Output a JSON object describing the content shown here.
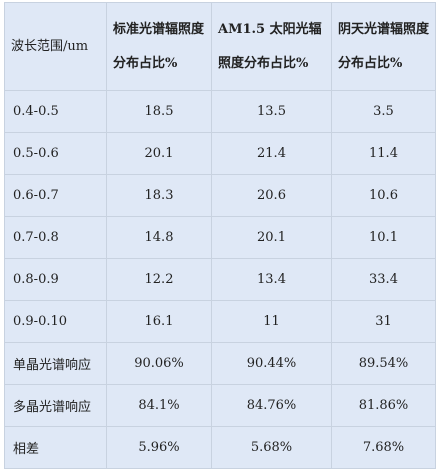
{
  "table": {
    "headers": [
      "波长范围/um",
      "标准光谱辐照度分布占比%",
      "AM1.5 太阳光辐照度分布占比%",
      "阴天光谱辐照度分布占比%"
    ],
    "rows": [
      {
        "label": "0.4-0.5",
        "values": [
          "18.5",
          "13.5",
          "3.5"
        ]
      },
      {
        "label": "0.5-0.6",
        "values": [
          "20.1",
          "21.4",
          "11.4"
        ]
      },
      {
        "label": "0.6-0.7",
        "values": [
          "18.3",
          "20.6",
          "10.6"
        ]
      },
      {
        "label": "0.7-0.8",
        "values": [
          "14.8",
          "20.1",
          "10.1"
        ]
      },
      {
        "label": "0.8-0.9",
        "values": [
          "12.2",
          "13.4",
          "33.4"
        ]
      },
      {
        "label": "0.9-0.10",
        "values": [
          "16.1",
          "11",
          "31"
        ]
      },
      {
        "label": "单晶光谱响应",
        "values": [
          "90.06%",
          "90.44%",
          "89.54%"
        ]
      },
      {
        "label": "多晶光谱响应",
        "values": [
          "84.1%",
          "84.76%",
          "81.86%"
        ]
      },
      {
        "label": "相差",
        "values": [
          "5.96%",
          "5.68%",
          "7.68%"
        ]
      }
    ]
  }
}
